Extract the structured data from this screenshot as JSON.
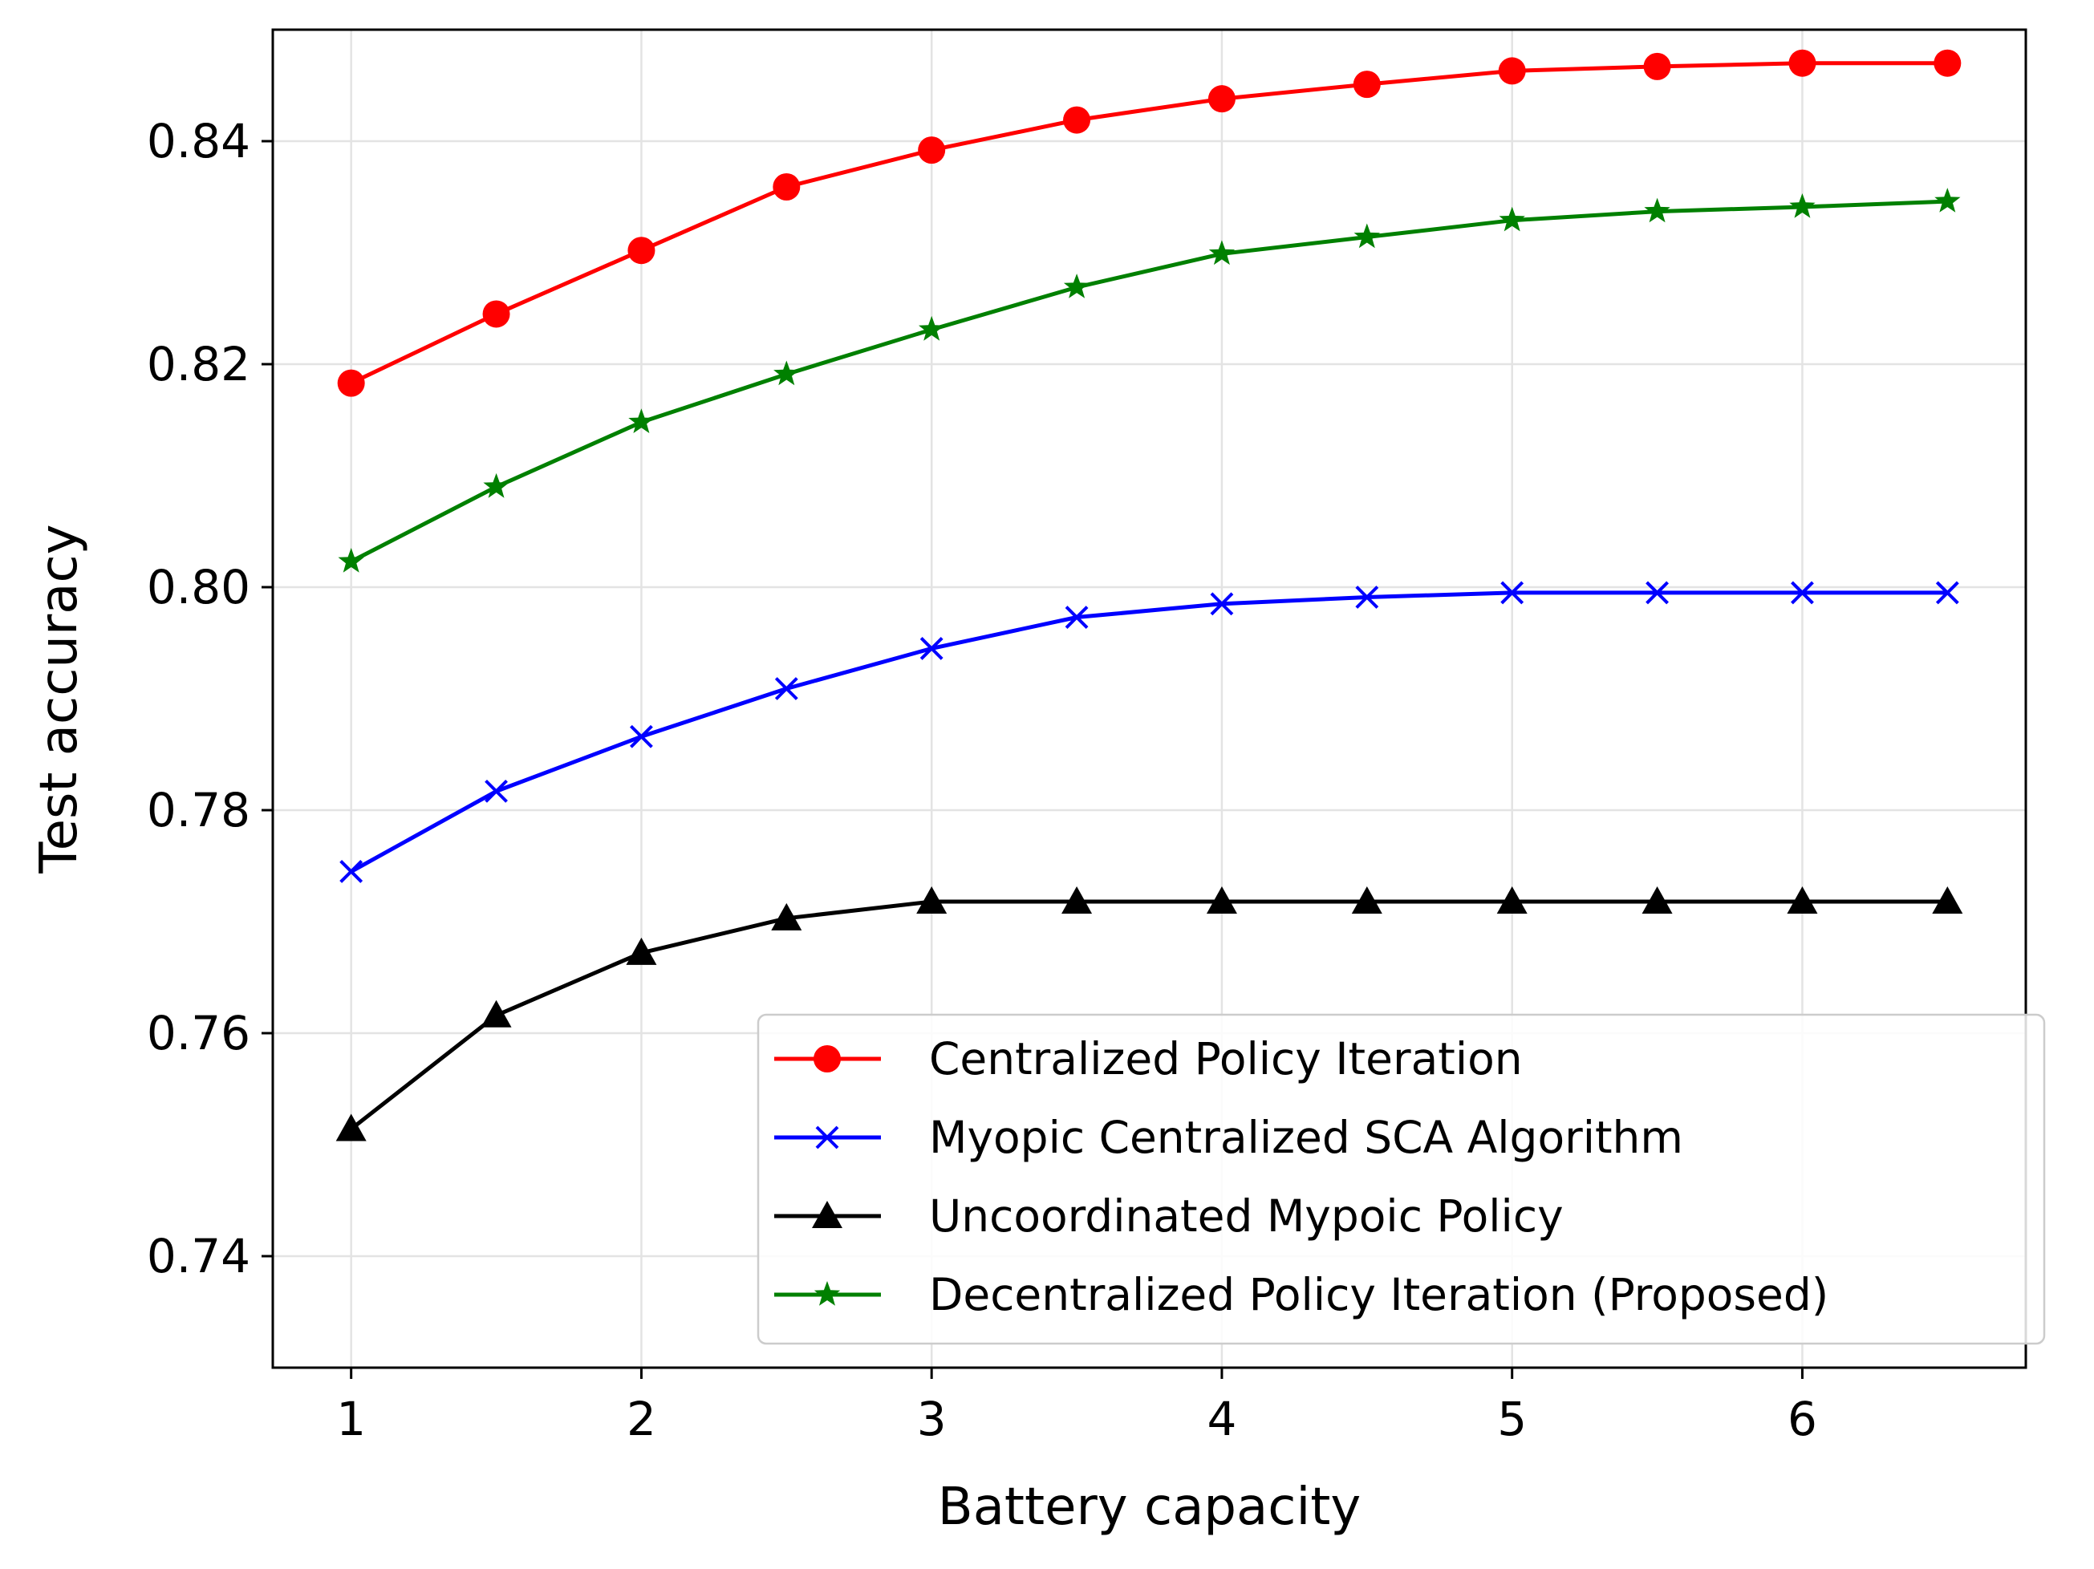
{
  "chart_data": {
    "type": "line",
    "title": "",
    "xlabel": "Battery capacity",
    "ylabel": "Test accuracy",
    "xlim": [
      0.73,
      6.77
    ],
    "ylim": [
      0.73,
      0.85
    ],
    "xticks": [
      1,
      2,
      3,
      4,
      5,
      6
    ],
    "xtick_labels": [
      "1",
      "2",
      "3",
      "4",
      "5",
      "6"
    ],
    "yticks": [
      0.74,
      0.76,
      0.78,
      0.8,
      0.82,
      0.84
    ],
    "ytick_labels": [
      "0.74",
      "0.76",
      "0.78",
      "0.80",
      "0.82",
      "0.84"
    ],
    "grid": true,
    "legend_position": "lower-right",
    "x": [
      1,
      1.5,
      2,
      2.5,
      3,
      3.5,
      4,
      4.5,
      5,
      5.5,
      6,
      6.5
    ],
    "series": [
      {
        "name": "Centralized Policy Iteration",
        "color": "#ff0000",
        "marker": "circle",
        "values": [
          0.8183,
          0.8245,
          0.8302,
          0.8359,
          0.8392,
          0.8419,
          0.8438,
          0.8451,
          0.8463,
          0.8467,
          0.847,
          0.847
        ]
      },
      {
        "name": "Myopic Centralized SCA Algorithm",
        "color": "#0000ff",
        "marker": "x",
        "values": [
          0.7745,
          0.7817,
          0.7866,
          0.7909,
          0.7945,
          0.7973,
          0.7985,
          0.7991,
          0.7995,
          0.7995,
          0.7995,
          0.7995
        ]
      },
      {
        "name": "Uncoordinated Mypoic Policy",
        "color": "#000000",
        "marker": "triangle",
        "values": [
          0.7514,
          0.7616,
          0.7672,
          0.7703,
          0.7718,
          0.7718,
          0.7718,
          0.7718,
          0.7718,
          0.7718,
          0.7718,
          0.7718
        ]
      },
      {
        "name": "Decentralized Policy Iteration (Proposed)",
        "color": "#008000",
        "marker": "star",
        "values": [
          0.8023,
          0.809,
          0.8148,
          0.8191,
          0.8231,
          0.8269,
          0.8299,
          0.8314,
          0.8329,
          0.8337,
          0.8341,
          0.8346
        ]
      }
    ]
  }
}
